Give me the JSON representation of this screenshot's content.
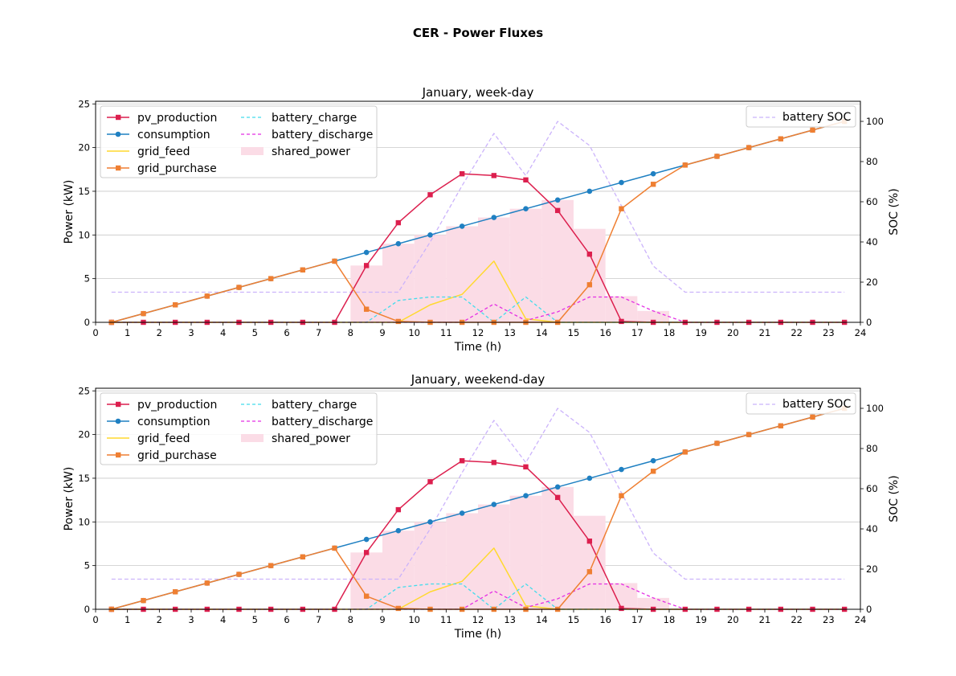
{
  "figure": {
    "title": "CER - Power Fluxes",
    "background": "#ffffff"
  },
  "colors": {
    "pv_production": "#dc1f4e",
    "consumption": "#1f80c2",
    "grid_feed": "#ffd92f",
    "grid_purchase": "#ef7f32",
    "battery_charge": "#42dcec",
    "battery_discharge": "#e42de4",
    "shared_power": "#fbdce6",
    "battery_soc": "#cbb3fb",
    "grid": "#c8c8c8"
  },
  "chart_data": [
    {
      "type": "line",
      "title": "January, week-day",
      "xlabel": "Time (h)",
      "ylabel": "Power (kW)",
      "y2label": "SOC (%)",
      "xlim": [
        0,
        24
      ],
      "ylim": [
        0,
        25.3
      ],
      "y2lim": [
        0,
        110
      ],
      "xticks": [
        "0",
        "1",
        "2",
        "3",
        "4",
        "5",
        "6",
        "7",
        "8",
        "9",
        "10",
        "11",
        "12",
        "13",
        "14",
        "15",
        "16",
        "17",
        "18",
        "19",
        "20",
        "21",
        "22",
        "23",
        "24"
      ],
      "yticks": [
        "0",
        "5",
        "10",
        "15",
        "20",
        "25"
      ],
      "y2ticks": [
        "0",
        "20",
        "40",
        "60",
        "80",
        "100"
      ],
      "grid": "horizontal",
      "legend_left": [
        "pv_production",
        "consumption",
        "grid_feed",
        "grid_purchase",
        "battery_charge",
        "battery_discharge",
        "shared_power"
      ],
      "legend_right": [
        "battery SOC"
      ],
      "x": [
        0.5,
        1.5,
        2.5,
        3.5,
        4.5,
        5.5,
        6.5,
        7.5,
        8.5,
        9.5,
        10.5,
        11.5,
        12.5,
        13.5,
        14.5,
        15.5,
        16.5,
        17.5,
        18.5,
        19.5,
        20.5,
        21.5,
        22.5,
        23.5
      ],
      "series": [
        {
          "name": "pv_production",
          "style": "line-square",
          "values": [
            0,
            0,
            0,
            0,
            0,
            0,
            0,
            0,
            6.5,
            11.4,
            14.6,
            17.0,
            16.8,
            16.3,
            12.8,
            7.8,
            0.1,
            0,
            0,
            0,
            0,
            0,
            0,
            0
          ]
        },
        {
          "name": "consumption",
          "style": "line-circle",
          "values": [
            0,
            1,
            2,
            3,
            4,
            5,
            6,
            7,
            8,
            9,
            10,
            11,
            12,
            13,
            14,
            15,
            16,
            17,
            18,
            19,
            20,
            21,
            22,
            23
          ]
        },
        {
          "name": "grid_feed",
          "style": "line",
          "values": [
            0,
            0,
            0,
            0,
            0,
            0,
            0,
            0,
            0,
            0,
            2.0,
            3.2,
            7.0,
            0.4,
            0,
            0,
            0,
            0,
            0,
            0,
            0,
            0,
            0,
            0
          ]
        },
        {
          "name": "grid_purchase",
          "style": "line-square",
          "values": [
            0,
            1,
            2,
            3,
            4,
            5,
            6,
            7,
            1.5,
            0.1,
            0,
            0,
            0,
            0,
            0,
            4.3,
            13.0,
            15.8,
            18,
            19,
            20,
            21,
            22,
            23
          ]
        },
        {
          "name": "battery_charge",
          "style": "dashed",
          "values": [
            0,
            0,
            0,
            0,
            0,
            0,
            0,
            0,
            0,
            2.5,
            2.9,
            2.9,
            0,
            2.9,
            0,
            0,
            0,
            0,
            0,
            0,
            0,
            0,
            0,
            0
          ]
        },
        {
          "name": "battery_discharge",
          "style": "dashed",
          "values": [
            0,
            0,
            0,
            0,
            0,
            0,
            0,
            0,
            0,
            0,
            0,
            0,
            2.1,
            0.2,
            1.2,
            2.9,
            2.9,
            1.3,
            0,
            0,
            0,
            0,
            0,
            0
          ]
        },
        {
          "name": "shared_power",
          "style": "bar",
          "values": [
            0,
            0,
            0,
            0,
            0,
            0,
            0,
            0,
            6.5,
            9.0,
            10.0,
            11.0,
            12.0,
            13.0,
            14.0,
            10.7,
            3.0,
            1.3,
            0,
            0,
            0,
            0,
            0,
            0
          ]
        },
        {
          "name": "battery SOC",
          "axis": "right",
          "style": "dashed",
          "values": [
            15,
            15,
            15,
            15,
            15,
            15,
            15,
            15,
            15,
            15,
            40,
            68,
            94,
            73,
            100,
            88,
            58,
            28,
            15,
            15,
            15,
            15,
            15,
            15
          ]
        }
      ]
    },
    {
      "type": "line",
      "title": "January, weekend-day",
      "xlabel": "Time (h)",
      "ylabel": "Power (kW)",
      "y2label": "SOC (%)",
      "xlim": [
        0,
        24
      ],
      "ylim": [
        0,
        25.3
      ],
      "y2lim": [
        0,
        110
      ],
      "xticks": [
        "0",
        "1",
        "2",
        "3",
        "4",
        "5",
        "6",
        "7",
        "8",
        "9",
        "10",
        "11",
        "12",
        "13",
        "14",
        "15",
        "16",
        "17",
        "18",
        "19",
        "20",
        "21",
        "22",
        "23",
        "24"
      ],
      "yticks": [
        "0",
        "5",
        "10",
        "15",
        "20",
        "25"
      ],
      "y2ticks": [
        "0",
        "20",
        "40",
        "60",
        "80",
        "100"
      ],
      "grid": "horizontal",
      "legend_left": [
        "pv_production",
        "consumption",
        "grid_feed",
        "grid_purchase",
        "battery_charge",
        "battery_discharge",
        "shared_power"
      ],
      "legend_right": [
        "battery SOC"
      ],
      "x": [
        0.5,
        1.5,
        2.5,
        3.5,
        4.5,
        5.5,
        6.5,
        7.5,
        8.5,
        9.5,
        10.5,
        11.5,
        12.5,
        13.5,
        14.5,
        15.5,
        16.5,
        17.5,
        18.5,
        19.5,
        20.5,
        21.5,
        22.5,
        23.5
      ],
      "series": [
        {
          "name": "pv_production",
          "style": "line-square",
          "values": [
            0,
            0,
            0,
            0,
            0,
            0,
            0,
            0,
            6.5,
            11.4,
            14.6,
            17.0,
            16.8,
            16.3,
            12.8,
            7.8,
            0.1,
            0,
            0,
            0,
            0,
            0,
            0,
            0
          ]
        },
        {
          "name": "consumption",
          "style": "line-circle",
          "values": [
            0,
            1,
            2,
            3,
            4,
            5,
            6,
            7,
            8,
            9,
            10,
            11,
            12,
            13,
            14,
            15,
            16,
            17,
            18,
            19,
            20,
            21,
            22,
            23
          ]
        },
        {
          "name": "grid_feed",
          "style": "line",
          "values": [
            0,
            0,
            0,
            0,
            0,
            0,
            0,
            0,
            0,
            0,
            2.0,
            3.2,
            7.0,
            0.4,
            0,
            0,
            0,
            0,
            0,
            0,
            0,
            0,
            0,
            0
          ]
        },
        {
          "name": "grid_purchase",
          "style": "line-square",
          "values": [
            0,
            1,
            2,
            3,
            4,
            5,
            6,
            7,
            1.5,
            0.1,
            0,
            0,
            0,
            0,
            0,
            4.3,
            13.0,
            15.8,
            18,
            19,
            20,
            21,
            22,
            23
          ]
        },
        {
          "name": "battery_charge",
          "style": "dashed",
          "values": [
            0,
            0,
            0,
            0,
            0,
            0,
            0,
            0,
            0,
            2.5,
            2.9,
            2.9,
            0,
            2.9,
            0,
            0,
            0,
            0,
            0,
            0,
            0,
            0,
            0,
            0
          ]
        },
        {
          "name": "battery_discharge",
          "style": "dashed",
          "values": [
            0,
            0,
            0,
            0,
            0,
            0,
            0,
            0,
            0,
            0,
            0,
            0,
            2.1,
            0.2,
            1.2,
            2.9,
            2.9,
            1.3,
            0,
            0,
            0,
            0,
            0,
            0
          ]
        },
        {
          "name": "shared_power",
          "style": "bar",
          "values": [
            0,
            0,
            0,
            0,
            0,
            0,
            0,
            0,
            6.5,
            9.0,
            10.0,
            11.0,
            12.0,
            13.0,
            14.0,
            10.7,
            3.0,
            1.3,
            0,
            0,
            0,
            0,
            0,
            0
          ]
        },
        {
          "name": "battery SOC",
          "axis": "right",
          "style": "dashed",
          "values": [
            15,
            15,
            15,
            15,
            15,
            15,
            15,
            15,
            15,
            15,
            40,
            68,
            94,
            73,
            100,
            88,
            58,
            28,
            15,
            15,
            15,
            15,
            15,
            15
          ]
        }
      ]
    }
  ]
}
